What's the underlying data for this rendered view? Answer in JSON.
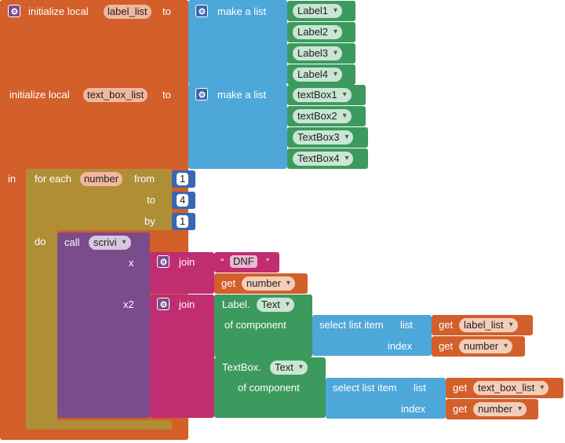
{
  "colors": {
    "variables": "#d35f2b",
    "lists": "#4ea7d9",
    "components": "#3d9a5f",
    "control": "#b08e36",
    "procedures": "#7a4c8c",
    "text": "#c02d70",
    "math": "#3a68b0"
  },
  "init1": {
    "prefix": "initialize local",
    "var": "label_list",
    "to": "to",
    "list_label": "make a list",
    "items": [
      "Label1",
      "Label2",
      "Label3",
      "Label4"
    ]
  },
  "init2": {
    "prefix": "initialize local",
    "var": "text_box_list",
    "to": "to",
    "list_label": "make a list",
    "items": [
      "textBox1",
      "textBox2",
      "TextBox3",
      "TextBox4"
    ]
  },
  "in_label": "in",
  "loop": {
    "for_each": "for each",
    "var": "number",
    "from": "from",
    "from_val": "1",
    "to": "to",
    "to_val": "4",
    "by": "by",
    "by_val": "1",
    "do": "do"
  },
  "call": {
    "call": "call",
    "name": "scrivi",
    "x": "x",
    "x2": "x2"
  },
  "join1": {
    "label": "join",
    "quote_open": "“",
    "text": "DNF",
    "quote_close": "”",
    "get": "get",
    "get_var": "number"
  },
  "join2": {
    "label": "join",
    "label_prop": {
      "component": "Label.",
      "property": "Text",
      "of_component": "of component",
      "select": "select list item",
      "list": "list",
      "index": "index",
      "get": "get",
      "list_var": "label_list",
      "index_var": "number"
    },
    "textbox_prop": {
      "component": "TextBox.",
      "property": "Text",
      "of_component": "of component",
      "select": "select list item",
      "list": "list",
      "index": "index",
      "get": "get",
      "list_var": "text_box_list",
      "index_var": "number"
    }
  }
}
